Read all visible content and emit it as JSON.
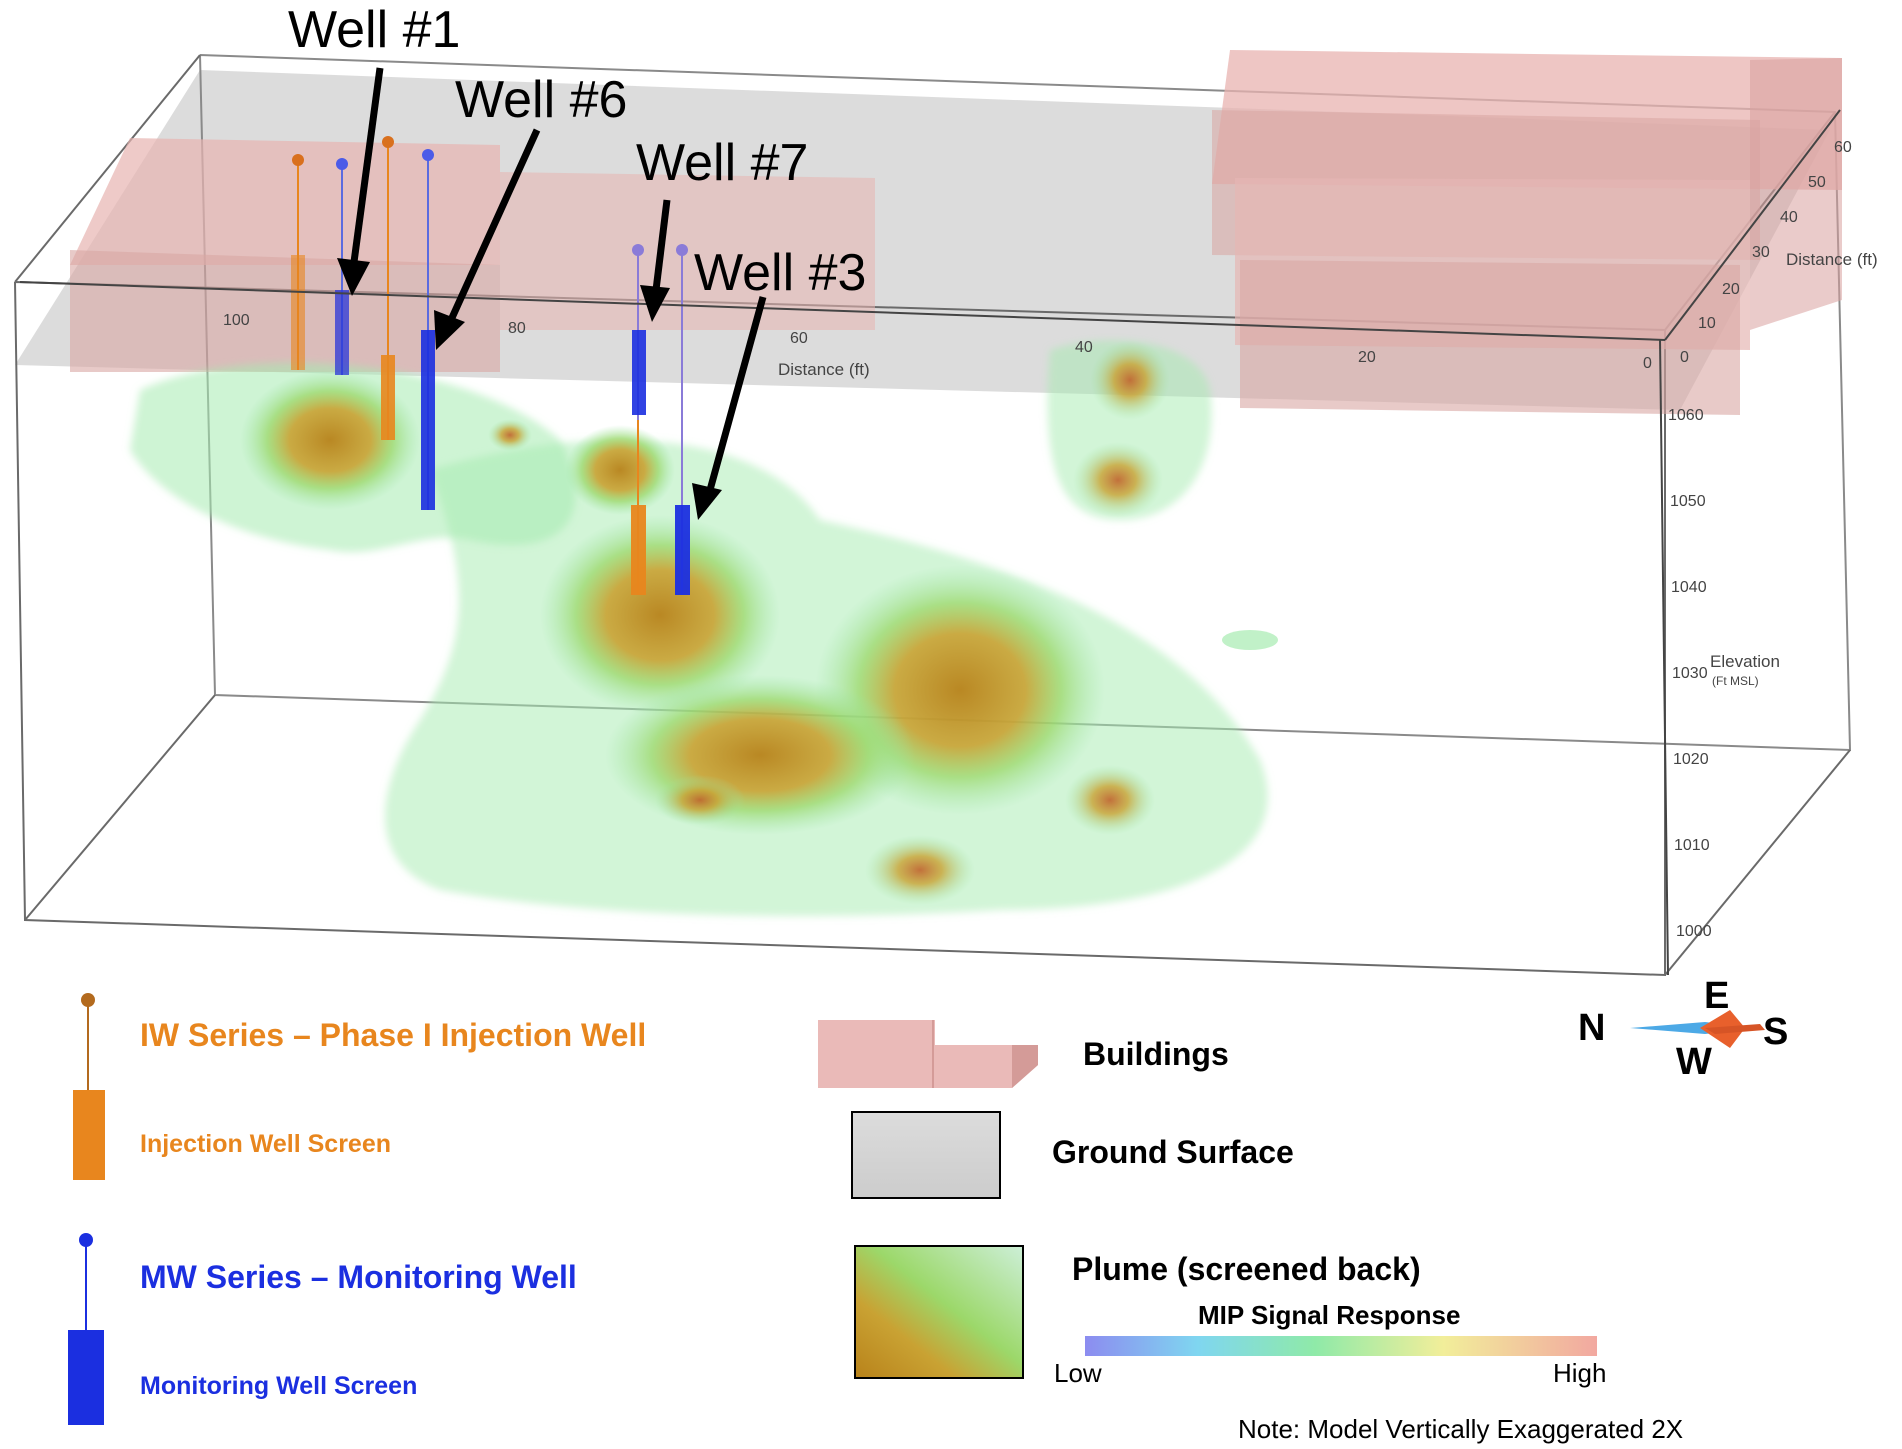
{
  "callouts": {
    "well1": "Well #1",
    "well6": "Well #6",
    "well7": "Well #7",
    "well3": "Well #3"
  },
  "axes": {
    "distance_label": "Distance (ft)",
    "distance_ticks": [
      "100",
      "80",
      "60",
      "40",
      "20",
      "0"
    ],
    "depth_label": "Distance (ft)",
    "depth_ticks": [
      "0",
      "10",
      "20",
      "30",
      "40",
      "50",
      "60"
    ],
    "elevation_label": "Elevation",
    "elevation_unit": "(Ft MSL)",
    "elevation_ticks": [
      "1060",
      "1050",
      "1040",
      "1030",
      "1020",
      "1010",
      "1000"
    ]
  },
  "legend": {
    "iw_title": "IW Series – Phase I Injection Well",
    "iw_screen": "Injection Well Screen",
    "mw_title": "MW Series – Monitoring Well",
    "mw_screen": "Monitoring Well Screen",
    "buildings": "Buildings",
    "ground_surface": "Ground Surface",
    "plume": "Plume (screened back)",
    "mip_title": "MIP Signal Response",
    "low": "Low",
    "high": "High"
  },
  "compass": {
    "north": "N",
    "east": "E",
    "south": "S",
    "west": "W"
  },
  "note": "Note: Model Vertically Exaggerated 2X",
  "colors": {
    "injection_well": "#E8861E",
    "monitoring_well": "#1B2FE0",
    "building": "#E8B3B0",
    "ground": "#D4D4D4",
    "plume_outer": "#8FE39A",
    "plume_core": "#C9891A"
  },
  "icons": [
    "compass-rose-icon",
    "injection-well-icon",
    "monitoring-well-icon",
    "building-icon",
    "ground-surface-icon",
    "plume-icon"
  ]
}
